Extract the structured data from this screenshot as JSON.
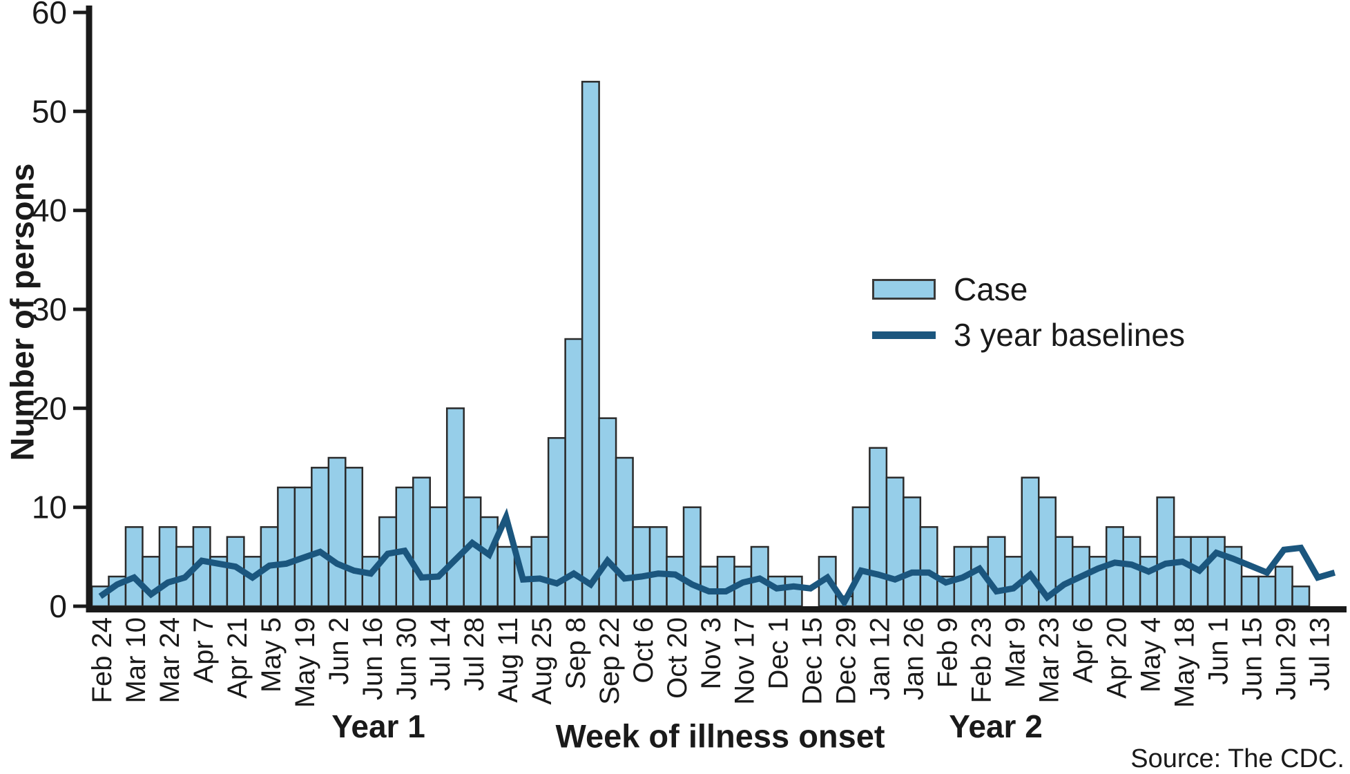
{
  "figure": {
    "ylabel": "Number of persons",
    "xlabel": "Week of illness onset",
    "year1_label": "Year 1",
    "year2_label": "Year 2",
    "source": "Source: The CDC.",
    "legend": {
      "case_label": "Case",
      "baseline_label": "3 year baselines"
    }
  },
  "colors": {
    "bar_fill": "#96CEE9",
    "bar_border": "#2a2a2a",
    "baseline_line": "#1B567E",
    "axis": "#1a1a1a",
    "text": "#1a1a1a",
    "background": "#ffffff"
  },
  "chart_data": {
    "type": "bar",
    "title": "",
    "xlabel": "Week of illness onset",
    "ylabel": "Number of persons",
    "ylim": [
      0,
      60
    ],
    "yticks": [
      0,
      10,
      20,
      30,
      40,
      50,
      60
    ],
    "grid": false,
    "legend_position": "upper-right-inside",
    "n_points": 74,
    "x_unit": "week of illness onset, weekly bins",
    "x_tick_every": 2,
    "x_tick_start_index": 0,
    "x_tick_labels": [
      "Feb 24",
      "Mar 10",
      "Mar 24",
      "Apr 7",
      "Apr 21",
      "May 5",
      "May 19",
      "Jun 2",
      "Jun 16",
      "Jun 30",
      "Jul 14",
      "Jul 28",
      "Aug 11",
      "Aug 25",
      "Sep 8",
      "Sep 22",
      "Oct 6",
      "Oct 20",
      "Nov 3",
      "Nov 17",
      "Dec 1",
      "Dec 15",
      "Dec 29",
      "Jan 12",
      "Jan 26",
      "Feb 9",
      "Feb 23",
      "Mar 9",
      "Mar 23",
      "Apr 6",
      "Apr 20",
      "May 4",
      "May 18",
      "Jun 1",
      "Jun 15",
      "Jun 29",
      "Jul 13"
    ],
    "series": [
      {
        "name": "Case",
        "type": "bar",
        "values": [
          2,
          3,
          8,
          5,
          8,
          6,
          8,
          5,
          7,
          5,
          8,
          12,
          12,
          14,
          15,
          14,
          5,
          9,
          12,
          13,
          10,
          20,
          11,
          9,
          6,
          6,
          7,
          17,
          27,
          53,
          19,
          15,
          8,
          8,
          5,
          10,
          4,
          5,
          4,
          6,
          3,
          3,
          0,
          5,
          1,
          10,
          16,
          13,
          11,
          8,
          3,
          6,
          6,
          7,
          5,
          13,
          11,
          7,
          6,
          5,
          8,
          7,
          5,
          11,
          7,
          7,
          7,
          6,
          3,
          3,
          4,
          2,
          0,
          0
        ]
      },
      {
        "name": "3 year baselines",
        "type": "line",
        "values": [
          1.0,
          2.2,
          2.9,
          1.2,
          2.4,
          2.9,
          4.6,
          4.3,
          4.0,
          2.9,
          4.1,
          4.3,
          4.9,
          5.5,
          4.3,
          3.6,
          3.3,
          5.3,
          5.6,
          2.9,
          3.0,
          4.7,
          6.4,
          5.2,
          9.0,
          2.7,
          2.8,
          2.3,
          3.3,
          2.2,
          4.6,
          2.8,
          3.0,
          3.3,
          3.2,
          2.2,
          1.5,
          1.5,
          2.4,
          2.8,
          1.8,
          2.0,
          1.8,
          2.9,
          0.4,
          3.6,
          3.2,
          2.7,
          3.4,
          3.4,
          2.4,
          2.9,
          3.8,
          1.5,
          1.8,
          3.2,
          0.9,
          2.2,
          3.0,
          3.8,
          4.4,
          4.2,
          3.5,
          4.3,
          4.5,
          3.6,
          5.4,
          4.8,
          4.1,
          3.4,
          5.7,
          5.9,
          2.9,
          3.4
        ]
      }
    ],
    "annotations": [
      "Year 1",
      "Year 2",
      "Source: The CDC."
    ]
  }
}
